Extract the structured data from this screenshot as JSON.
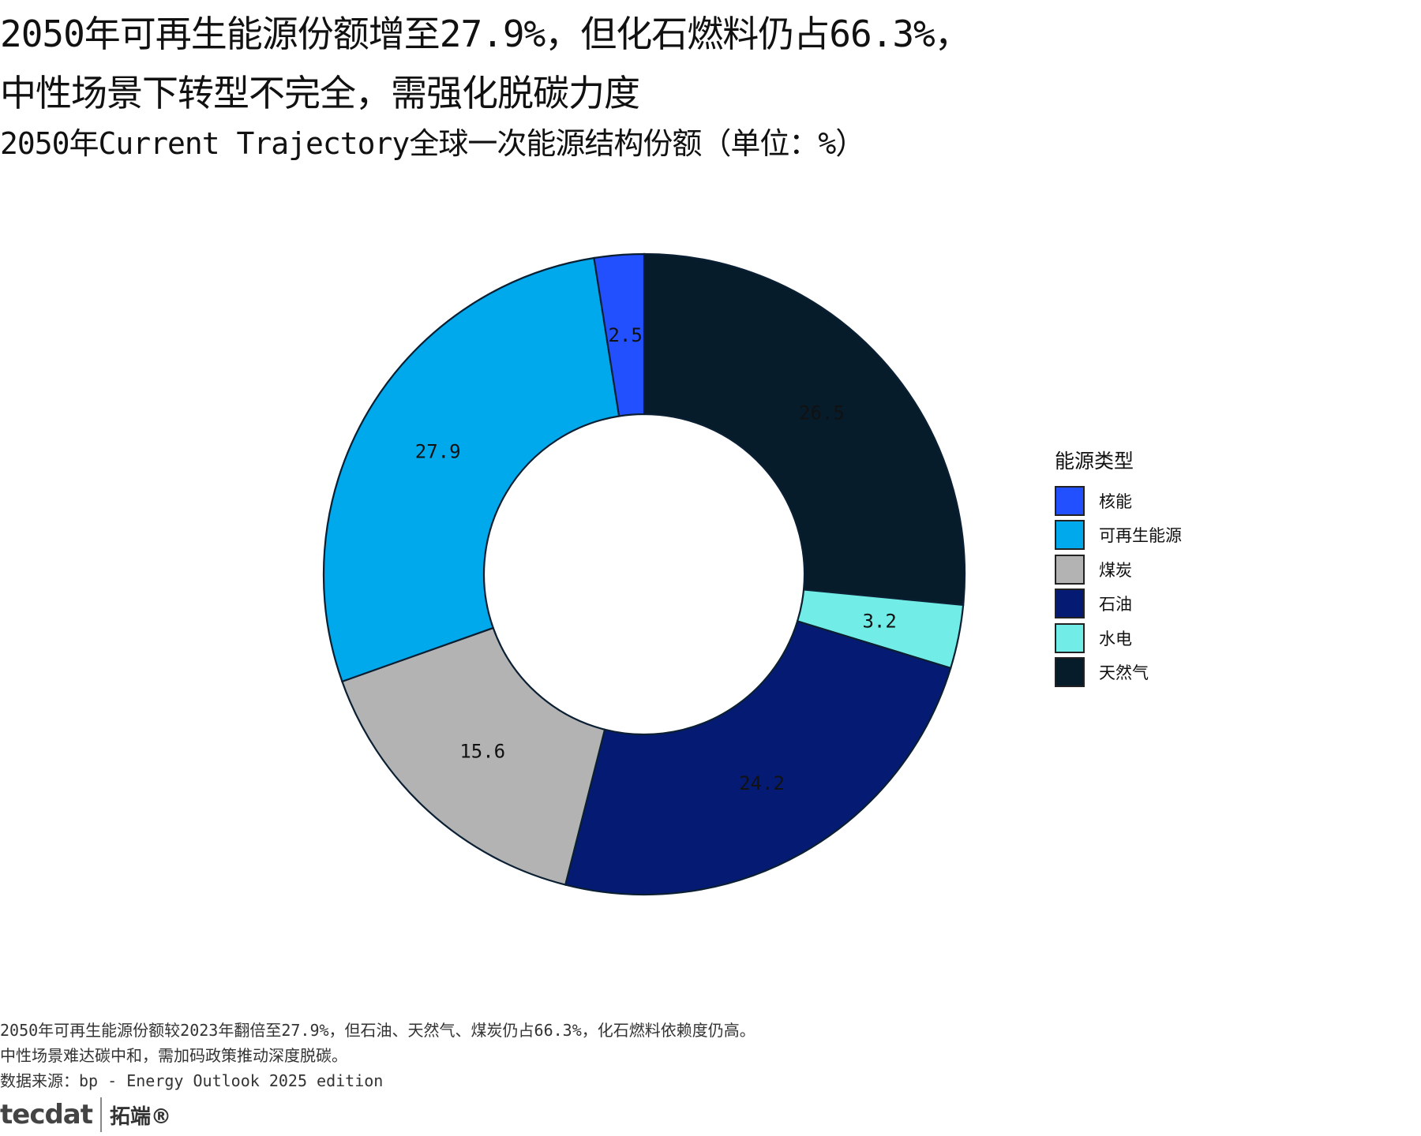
{
  "title_lines": [
    "2050年可再生能源份额增至27.9%，但化石燃料仍占66.3%，",
    "中性场景下转型不完全，需强化脱碳力度"
  ],
  "subtitle": "2050年Current Trajectory全球一次能源结构份额（单位：%）",
  "chart_data": {
    "type": "pie",
    "donut": true,
    "title": "2050年Current Trajectory全球一次能源结构份额（单位：%）",
    "legend_title": "能源类型",
    "legend_placement": "right",
    "slice_order_clockwise_from_top": [
      "天然气",
      "水电",
      "石油",
      "煤炭",
      "可再生能源",
      "核能"
    ],
    "legend_order": [
      "核能",
      "可再生能源",
      "煤炭",
      "石油",
      "水电",
      "天然气"
    ],
    "slices": [
      {
        "name": "天然气",
        "value": 26.5,
        "label": "26.5",
        "color": "#061c2b"
      },
      {
        "name": "水电",
        "value": 3.2,
        "label": "3.2",
        "color": "#72ece6"
      },
      {
        "name": "石油",
        "value": 24.2,
        "label": "24.2",
        "color": "#051a73"
      },
      {
        "name": "煤炭",
        "value": 15.6,
        "label": "15.6",
        "color": "#b3b3b3"
      },
      {
        "name": "可再生能源",
        "value": 27.9,
        "label": "27.9",
        "color": "#00a8ec"
      },
      {
        "name": "核能",
        "value": 2.5,
        "label": "2.5",
        "color": "#2250ff"
      }
    ]
  },
  "legend": {
    "title": "能源类型",
    "items": [
      {
        "label": "核能",
        "color": "#2250ff"
      },
      {
        "label": "可再生能源",
        "color": "#00a8ec"
      },
      {
        "label": "煤炭",
        "color": "#b3b3b3"
      },
      {
        "label": "石油",
        "color": "#051a73"
      },
      {
        "label": "水电",
        "color": "#72ece6"
      },
      {
        "label": "天然气",
        "color": "#061c2b"
      }
    ]
  },
  "footer_lines": [
    "2050年可再生能源份额较2023年翻倍至27.9%，但石油、天然气、煤炭仍占66.3%，化石燃料依赖度仍高。",
    "中性场景难达碳中和，需加码政策推动深度脱碳。",
    "数据来源：bp - Energy Outlook 2025 edition"
  ],
  "logo": {
    "text": "tecdat",
    "cn": "拓端®"
  }
}
